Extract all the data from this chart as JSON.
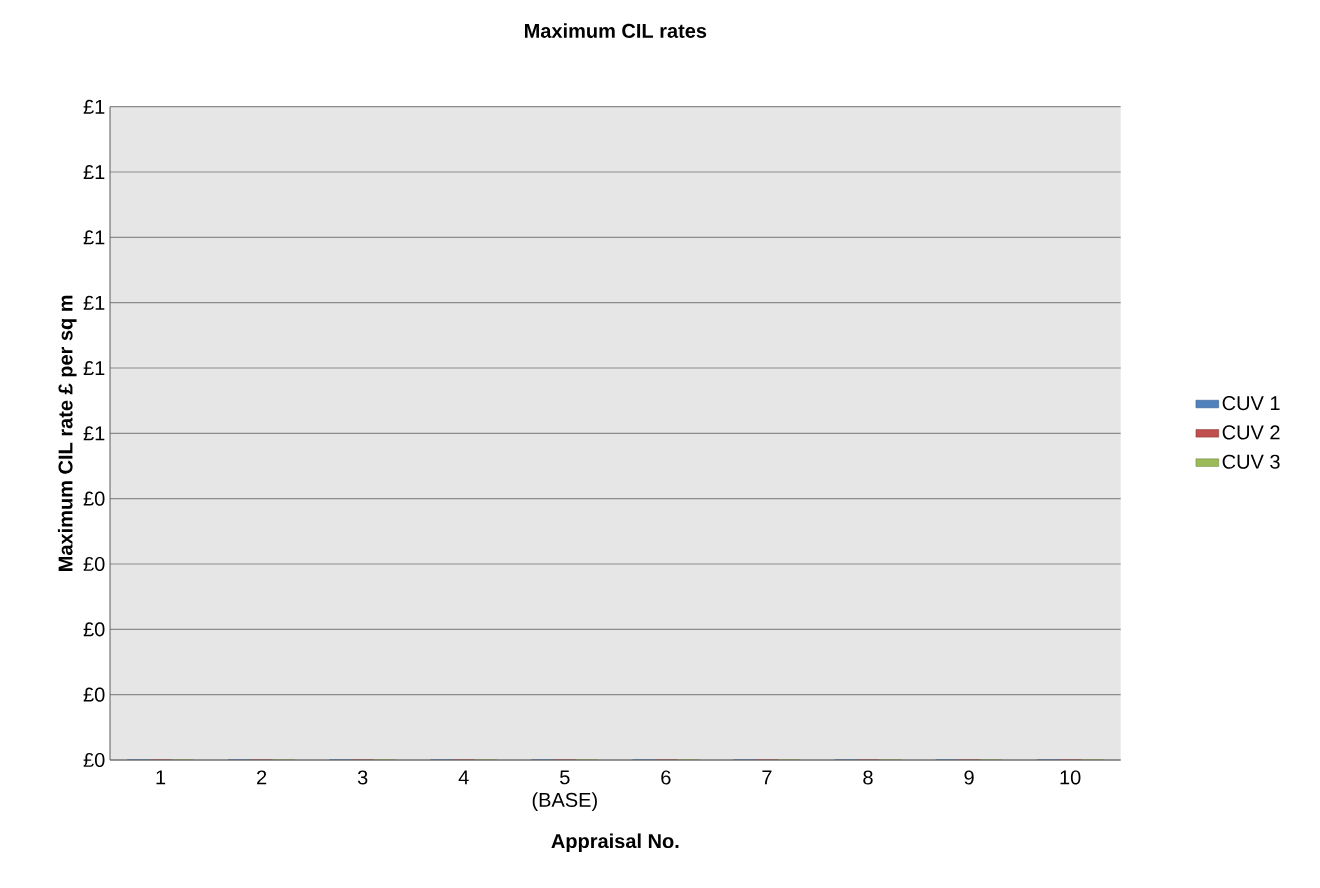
{
  "chart_data": {
    "type": "bar",
    "title": "Maximum CIL rates",
    "xlabel": "Appraisal No.",
    "ylabel": "Maximum CIL rate £ per sq m",
    "categories": [
      "1",
      "2",
      "3",
      "4",
      "5 (BASE)",
      "6",
      "7",
      "8",
      "9",
      "10"
    ],
    "series": [
      {
        "name": "CUV 1",
        "color": "#4f81bd",
        "values": [
          0,
          0,
          0,
          0,
          0,
          0,
          0,
          0,
          0,
          0
        ]
      },
      {
        "name": "CUV 2",
        "color": "#c0504d",
        "values": [
          0,
          0,
          0,
          0,
          0,
          0,
          0,
          0,
          0,
          0
        ]
      },
      {
        "name": "CUV 3",
        "color": "#9bbb59",
        "values": [
          0,
          0,
          0,
          0,
          0,
          0,
          0,
          0,
          0,
          0
        ]
      }
    ],
    "ylim": [
      0,
      1
    ],
    "yticks": [
      {
        "value": 0,
        "label": "£0"
      },
      {
        "value": 0.1,
        "label": "£0"
      },
      {
        "value": 0.2,
        "label": "£0"
      },
      {
        "value": 0.3,
        "label": "£0"
      },
      {
        "value": 0.4,
        "label": "£0"
      },
      {
        "value": 0.5,
        "label": "£1"
      },
      {
        "value": 0.6,
        "label": "£1"
      },
      {
        "value": 0.7,
        "label": "£1"
      },
      {
        "value": 0.8,
        "label": "£1"
      },
      {
        "value": 0.9,
        "label": "£1"
      },
      {
        "value": 1,
        "label": "£1"
      }
    ],
    "grid": "y",
    "legend": "right"
  }
}
